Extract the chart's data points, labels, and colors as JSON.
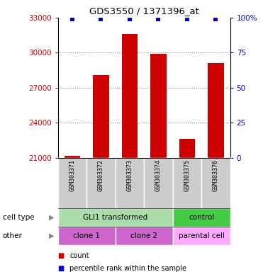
{
  "title": "GDS3550 / 1371396_at",
  "samples": [
    "GSM303371",
    "GSM303372",
    "GSM303373",
    "GSM303374",
    "GSM303375",
    "GSM303376"
  ],
  "counts": [
    21150,
    28100,
    31600,
    29900,
    22600,
    29100
  ],
  "ymin": 21000,
  "ymax": 33000,
  "yticks_left": [
    21000,
    24000,
    27000,
    30000,
    33000
  ],
  "yticks_right": [
    0,
    25,
    50,
    75,
    100
  ],
  "grid_lines": [
    24000,
    27000,
    30000
  ],
  "bar_color": "#cc0000",
  "dot_color": "#0000cc",
  "left_tick_color": "#cc0000",
  "right_tick_color": "#0000cc",
  "grid_color": "#888888",
  "sample_bg_color": "#cccccc",
  "cell_type_groups": [
    {
      "label": "GLI1 transformed",
      "color": "#aaddaa",
      "start": 0,
      "end": 4
    },
    {
      "label": "control",
      "color": "#44cc44",
      "start": 4,
      "end": 6
    }
  ],
  "other_groups": [
    {
      "label": "clone 1",
      "color": "#cc66cc",
      "start": 0,
      "end": 2
    },
    {
      "label": "clone 2",
      "color": "#cc66cc",
      "start": 2,
      "end": 4
    },
    {
      "label": "parental cell",
      "color": "#ffaaff",
      "start": 4,
      "end": 6
    }
  ],
  "legend_items": [
    {
      "color": "#cc0000",
      "label": "count"
    },
    {
      "color": "#0000cc",
      "label": "percentile rank within the sample"
    }
  ]
}
